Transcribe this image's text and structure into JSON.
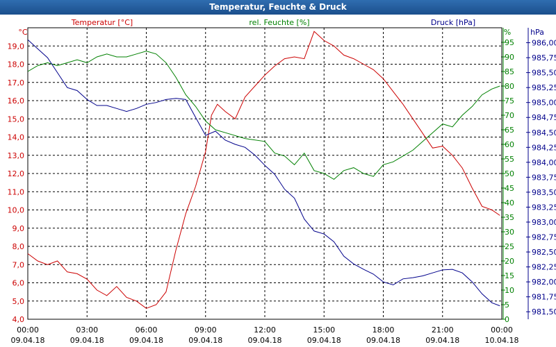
{
  "window": {
    "title": "Temperatur, Feuchte & Druck"
  },
  "chart_data": {
    "type": "line",
    "title": "Temperatur, Feuchte & Druck",
    "grid": true,
    "legend": "none",
    "colors": {
      "temperature": "#cc0000",
      "humidity": "#008000",
      "pressure": "#00008b",
      "grid": "#000000"
    },
    "x_range_hours": [
      0,
      24
    ],
    "x_ticks": [
      {
        "time": "00:00",
        "date": "09.04.18"
      },
      {
        "time": "03:00",
        "date": "09.04.18"
      },
      {
        "time": "06:00",
        "date": "09.04.18"
      },
      {
        "time": "09:00",
        "date": "09.04.18"
      },
      {
        "time": "12:00",
        "date": "09.04.18"
      },
      {
        "time": "15:00",
        "date": "09.04.18"
      },
      {
        "time": "18:00",
        "date": "09.04.18"
      },
      {
        "time": "21:00",
        "date": "09.04.18"
      },
      {
        "time": "00:00",
        "date": "10.04.18"
      }
    ],
    "axes": {
      "temperature": {
        "label": "Temperatur [°C]",
        "unit": "°C",
        "range": [
          4.0,
          20.0
        ],
        "ticks": [
          "4,0",
          "5,0",
          "6,0",
          "7,0",
          "8,0",
          "9,0",
          "10,0",
          "11,0",
          "12,0",
          "13,0",
          "14,0",
          "15,0",
          "16,0",
          "17,0",
          "18,0",
          "19,0"
        ]
      },
      "humidity": {
        "label": "rel. Feuchte [%]",
        "unit": "%",
        "range": [
          0,
          100
        ],
        "ticks": [
          "0",
          "5",
          "10",
          "15",
          "20",
          "25",
          "30",
          "35",
          "40",
          "45",
          "50",
          "55",
          "60",
          "65",
          "70",
          "75",
          "80",
          "85",
          "90",
          "95"
        ]
      },
      "pressure": {
        "label": "Druck [hPa]",
        "unit": "hPa",
        "range": [
          981.375,
          986.25
        ],
        "ticks": [
          "981,50",
          "981,75",
          "982,00",
          "982,25",
          "982,50",
          "982,75",
          "983,00",
          "983,25",
          "983,50",
          "983,75",
          "984,00",
          "984,25",
          "984,50",
          "984,75",
          "985,00",
          "985,25",
          "985,50",
          "985,75",
          "986,00"
        ]
      }
    },
    "series": [
      {
        "name": "Temperatur [°C]",
        "axis": "temperature",
        "points": [
          [
            0,
            7.6
          ],
          [
            0.5,
            7.2
          ],
          [
            1,
            7.0
          ],
          [
            1.5,
            7.2
          ],
          [
            2,
            6.6
          ],
          [
            2.5,
            6.5
          ],
          [
            3,
            6.2
          ],
          [
            3.5,
            5.6
          ],
          [
            4,
            5.3
          ],
          [
            4.5,
            5.8
          ],
          [
            5,
            5.2
          ],
          [
            5.5,
            5.0
          ],
          [
            6,
            4.6
          ],
          [
            6.5,
            4.8
          ],
          [
            7,
            5.5
          ],
          [
            7.5,
            7.8
          ],
          [
            8,
            9.8
          ],
          [
            8.5,
            11.3
          ],
          [
            9,
            13.2
          ],
          [
            9.3,
            15.2
          ],
          [
            9.6,
            15.8
          ],
          [
            10,
            15.4
          ],
          [
            10.5,
            15.0
          ],
          [
            11,
            16.2
          ],
          [
            11.5,
            16.8
          ],
          [
            12,
            17.4
          ],
          [
            12.5,
            17.9
          ],
          [
            13,
            18.3
          ],
          [
            13.5,
            18.4
          ],
          [
            14,
            18.3
          ],
          [
            14.5,
            19.8
          ],
          [
            15,
            19.3
          ],
          [
            15.5,
            19.0
          ],
          [
            16,
            18.5
          ],
          [
            16.5,
            18.3
          ],
          [
            17,
            18.0
          ],
          [
            17.5,
            17.7
          ],
          [
            18,
            17.2
          ],
          [
            18.5,
            16.5
          ],
          [
            19,
            15.8
          ],
          [
            19.5,
            15.0
          ],
          [
            20,
            14.2
          ],
          [
            20.5,
            13.4
          ],
          [
            21,
            13.5
          ],
          [
            21.5,
            13.0
          ],
          [
            22,
            12.3
          ],
          [
            22.5,
            11.2
          ],
          [
            23,
            10.2
          ],
          [
            23.5,
            10.0
          ],
          [
            23.9,
            9.7
          ]
        ]
      },
      {
        "name": "rel. Feuchte [%]",
        "axis": "humidity",
        "points": [
          [
            0,
            85
          ],
          [
            0.5,
            87
          ],
          [
            1,
            88
          ],
          [
            1.5,
            87
          ],
          [
            2,
            88
          ],
          [
            2.5,
            89
          ],
          [
            3,
            88
          ],
          [
            3.5,
            90
          ],
          [
            4,
            91
          ],
          [
            4.5,
            90
          ],
          [
            5,
            90
          ],
          [
            5.5,
            91
          ],
          [
            6,
            92
          ],
          [
            6.5,
            91
          ],
          [
            7,
            88
          ],
          [
            7.5,
            83
          ],
          [
            8,
            77
          ],
          [
            8.5,
            73
          ],
          [
            9,
            68
          ],
          [
            9.5,
            65
          ],
          [
            10,
            64
          ],
          [
            11,
            62
          ],
          [
            12,
            61
          ],
          [
            12.5,
            57
          ],
          [
            13,
            56
          ],
          [
            13.5,
            53
          ],
          [
            14,
            57
          ],
          [
            14.5,
            51
          ],
          [
            15,
            50
          ],
          [
            15.5,
            48
          ],
          [
            16,
            51
          ],
          [
            16.5,
            52
          ],
          [
            17,
            50
          ],
          [
            17.5,
            49
          ],
          [
            18,
            53
          ],
          [
            18.5,
            54
          ],
          [
            19,
            56
          ],
          [
            19.5,
            58
          ],
          [
            20,
            61
          ],
          [
            20.5,
            64
          ],
          [
            21,
            67
          ],
          [
            21.5,
            66
          ],
          [
            22,
            70
          ],
          [
            22.5,
            73
          ],
          [
            23,
            77
          ],
          [
            23.5,
            79
          ],
          [
            23.9,
            80
          ]
        ]
      },
      {
        "name": "Druck [hPa]",
        "axis": "pressure",
        "points": [
          [
            0,
            986.05
          ],
          [
            0.5,
            985.9
          ],
          [
            1,
            985.75
          ],
          [
            1.5,
            985.5
          ],
          [
            2,
            985.25
          ],
          [
            2.5,
            985.2
          ],
          [
            3,
            985.05
          ],
          [
            3.5,
            984.95
          ],
          [
            4,
            984.95
          ],
          [
            4.5,
            984.9
          ],
          [
            5,
            984.85
          ],
          [
            5.5,
            984.9
          ],
          [
            6,
            984.97
          ],
          [
            6.5,
            985.0
          ],
          [
            7,
            985.05
          ],
          [
            7.5,
            985.07
          ],
          [
            8,
            985.05
          ],
          [
            8.5,
            984.75
          ],
          [
            9,
            984.45
          ],
          [
            9.5,
            984.52
          ],
          [
            10,
            984.37
          ],
          [
            10.5,
            984.3
          ],
          [
            11,
            984.25
          ],
          [
            11.5,
            984.12
          ],
          [
            12,
            983.95
          ],
          [
            12.5,
            983.8
          ],
          [
            13,
            983.55
          ],
          [
            13.5,
            983.4
          ],
          [
            14,
            983.05
          ],
          [
            14.5,
            982.85
          ],
          [
            15,
            982.8
          ],
          [
            15.5,
            982.67
          ],
          [
            16,
            982.43
          ],
          [
            16.5,
            982.3
          ],
          [
            17,
            982.21
          ],
          [
            17.5,
            982.13
          ],
          [
            18,
            982.0
          ],
          [
            18.5,
            981.95
          ],
          [
            19,
            982.05
          ],
          [
            19.5,
            982.07
          ],
          [
            20,
            982.1
          ],
          [
            20.5,
            982.15
          ],
          [
            21,
            982.2
          ],
          [
            21.5,
            982.21
          ],
          [
            22,
            982.15
          ],
          [
            22.5,
            982.0
          ],
          [
            23,
            981.8
          ],
          [
            23.5,
            981.65
          ],
          [
            23.9,
            981.6
          ]
        ]
      }
    ]
  }
}
